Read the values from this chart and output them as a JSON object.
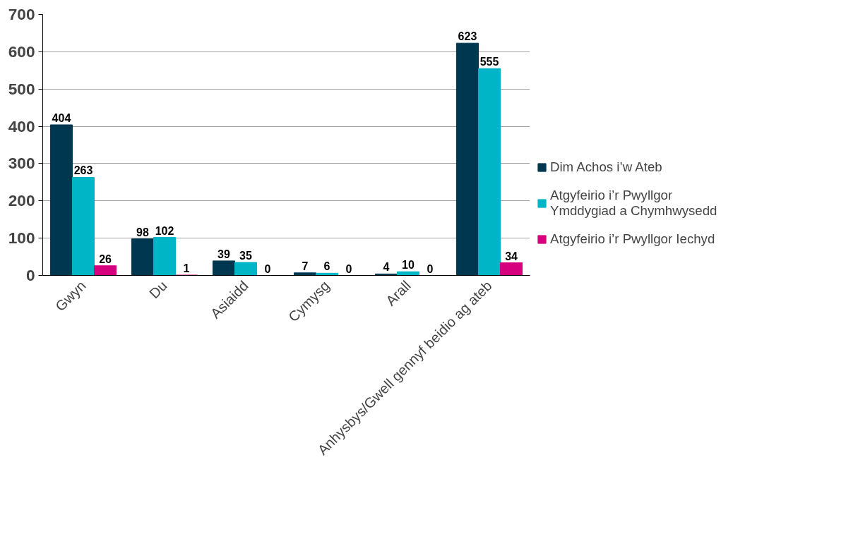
{
  "chart_data": {
    "type": "bar",
    "categories": [
      "Gwyn",
      "Du",
      "Asiaidd",
      "Cymysg",
      "Arall",
      "Anhysbys/Gwell gennyf beidio ag ateb"
    ],
    "series": [
      {
        "name": "Dim Achos i’w Ateb",
        "color": "#003750",
        "values": [
          404,
          98,
          39,
          7,
          4,
          623
        ]
      },
      {
        "name": "Atgyfeirio i’r Pwyllgor Ymddygiad a Chymhwysedd",
        "color": "#00b5c6",
        "values": [
          263,
          102,
          35,
          6,
          10,
          555
        ]
      },
      {
        "name": "Atgyfeirio i’r Pwyllgor Iechyd",
        "color": "#d6007e",
        "values": [
          26,
          1,
          0,
          0,
          0,
          34
        ]
      }
    ],
    "ylim": [
      0,
      700
    ],
    "yticks": [
      0,
      100,
      200,
      300,
      400,
      500,
      600,
      700
    ],
    "grid": "y",
    "legend": "right",
    "data_labels": true
  }
}
